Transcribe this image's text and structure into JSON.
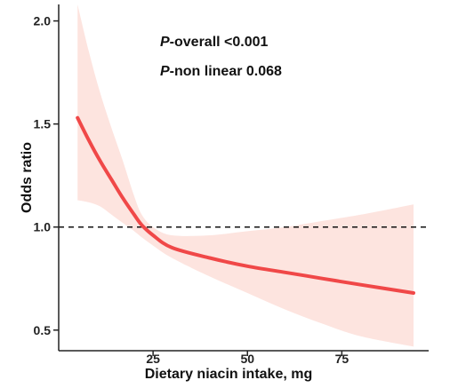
{
  "chart_data": {
    "type": "line",
    "xlabel": "Dietary niacin intake, mg",
    "ylabel": "Odds ratio",
    "xlim": [
      0,
      98
    ],
    "ylim": [
      0.4,
      2.08
    ],
    "x_ticks": [
      25,
      50,
      75
    ],
    "x_tick_labels": [
      "25",
      "50",
      "75"
    ],
    "y_ticks": [
      0.5,
      1.0,
      1.5,
      2.0
    ],
    "y_tick_labels": [
      "0.5",
      "1.0",
      "1.5",
      "2.0"
    ],
    "reference_line": {
      "y": 1.0,
      "style": "dashed"
    },
    "annotations": [
      {
        "italic": "P",
        "text": "-overall <0.001"
      },
      {
        "italic": "P",
        "text": "-non linear 0.068"
      }
    ],
    "grid": false,
    "colors": {
      "line": "#f04848",
      "band": "#fde4df",
      "reference": "#111111"
    },
    "series": [
      {
        "x": [
          5,
          8,
          11,
          14,
          17,
          20,
          22,
          25,
          30,
          40,
          50,
          60,
          70,
          80,
          94
        ],
        "y": [
          1.53,
          1.42,
          1.32,
          1.23,
          1.14,
          1.06,
          1.01,
          0.96,
          0.9,
          0.85,
          0.81,
          0.78,
          0.75,
          0.72,
          0.68
        ],
        "ci_upper": [
          2.08,
          1.85,
          1.65,
          1.48,
          1.32,
          1.15,
          1.06,
          1.0,
          0.96,
          0.96,
          0.98,
          1.0,
          1.03,
          1.06,
          1.11
        ],
        "ci_lower": [
          1.13,
          1.12,
          1.1,
          1.06,
          1.02,
          0.98,
          0.95,
          0.91,
          0.85,
          0.76,
          0.68,
          0.6,
          0.53,
          0.47,
          0.42
        ]
      }
    ]
  }
}
